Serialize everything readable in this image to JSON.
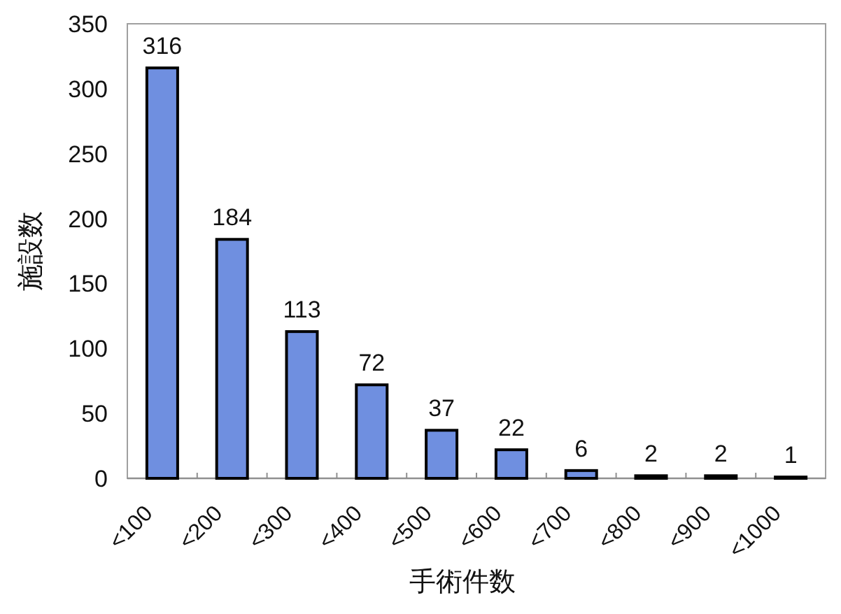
{
  "chart_data": {
    "type": "bar",
    "xlabel": "手術件数",
    "ylabel": "施設数",
    "categories": [
      "<100",
      "<200",
      "<300",
      "<400",
      "<500",
      "<600",
      "<700",
      "<800",
      "<900",
      "<1000"
    ],
    "values": [
      316,
      184,
      113,
      72,
      37,
      22,
      6,
      2,
      2,
      1
    ],
    "color": "#6f8fe0",
    "ylim": [
      0,
      350
    ],
    "yticks": [
      0,
      50,
      100,
      150,
      200,
      250,
      300,
      350
    ],
    "data_labels": true
  }
}
